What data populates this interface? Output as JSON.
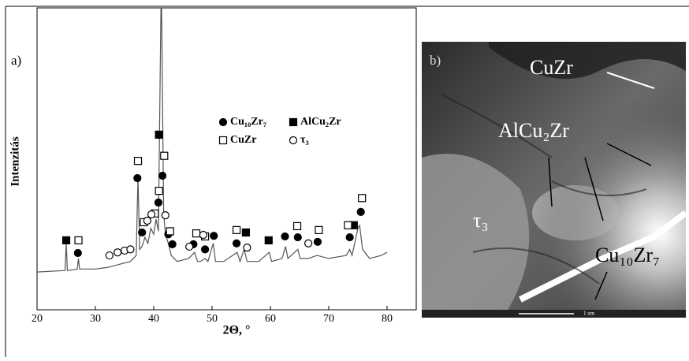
{
  "chart_data": {
    "type": "line",
    "panel_label": "a)",
    "y_label": "Intenzitás",
    "x_label": "2Θ, °",
    "xlim": [
      20,
      85
    ],
    "xticks": [
      20,
      30,
      40,
      50,
      60,
      70,
      80
    ],
    "ylim": [
      0,
      100
    ],
    "color": "#555555",
    "x": [
      20,
      24.8,
      25,
      25.2,
      26.9,
      27.1,
      27.3,
      30,
      32,
      34,
      36,
      37,
      37.3,
      37.6,
      38,
      38.5,
      39,
      39.5,
      40,
      40.4,
      40.8,
      41.3,
      41.7,
      42,
      42.5,
      43,
      44,
      46,
      47,
      47.5,
      48,
      48.8,
      49.3,
      50.2,
      50.6,
      52,
      54.3,
      54.8,
      55.5,
      56,
      58,
      59.8,
      60.2,
      62,
      62.6,
      63,
      64.7,
      65.1,
      66.5,
      68,
      70,
      73,
      73.6,
      74,
      75,
      75.3,
      75.8,
      77,
      79,
      80
    ],
    "values": [
      12.5,
      13,
      22,
      13,
      13.5,
      17,
      13.5,
      13.5,
      14,
      15,
      16,
      18,
      44,
      20,
      21,
      24,
      22,
      27,
      25,
      30,
      26,
      110,
      32,
      25,
      22,
      18,
      16,
      17,
      19,
      16,
      16,
      17,
      16,
      22,
      16,
      16,
      19,
      16,
      20,
      16,
      16,
      19,
      16,
      17,
      21,
      17,
      20,
      17,
      17,
      18,
      17,
      18,
      20,
      18,
      27,
      28,
      20,
      17,
      18,
      19
    ],
    "markers": [
      {
        "name": "Cu₁₀Zr₇",
        "symbol": "circle",
        "filled": true,
        "x": [
          27,
          37.2,
          38,
          40.8,
          41.5,
          42.5,
          43.2,
          46.8,
          48.8,
          50.3,
          54.2,
          62.5,
          64.7,
          68.1,
          73.6,
          75.5
        ],
        "values": [
          18.8,
          43.6,
          25.6,
          35.5,
          44.4,
          25,
          21.7,
          21.7,
          20,
          24.5,
          22,
          24.3,
          24,
          22.5,
          24,
          32.4
        ]
      },
      {
        "name": "AlCu₂Zr",
        "symbol": "square",
        "filled": true,
        "x": [
          25,
          40.9,
          55.8,
          59.7,
          74.3
        ],
        "values": [
          23,
          58,
          25.6,
          23,
          28
        ]
      },
      {
        "name": "CuZr",
        "symbol": "square",
        "filled": false,
        "x": [
          27.1,
          37.3,
          38.3,
          40.2,
          40.9,
          41.8,
          42.8,
          47.3,
          48.8,
          54.2,
          64.6,
          68.3,
          73.3,
          75.7
        ],
        "values": [
          23,
          49.3,
          29,
          31.9,
          39.4,
          51,
          26,
          25.3,
          24.3,
          26.4,
          27.7,
          26.4,
          28,
          37
        ]
      },
      {
        "name": "τ₃",
        "symbol": "circle",
        "filled": false,
        "x": [
          32.4,
          33.8,
          35,
          36,
          38.9,
          39.6,
          42,
          46.1,
          48.5,
          56,
          66.5
        ],
        "values": [
          18,
          19,
          19.6,
          20,
          29.5,
          31.6,
          31.3,
          20.9,
          24.8,
          20.6,
          22
        ]
      }
    ]
  },
  "image_panel": {
    "label": "b)",
    "phases": [
      "CuZr",
      "AlCu₂Zr",
      "τ₃",
      "Cu₁₀Zr₇"
    ],
    "scale_bar": "1 um"
  }
}
